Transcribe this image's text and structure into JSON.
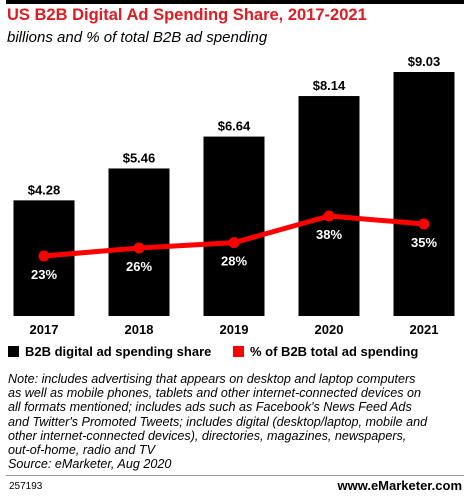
{
  "header": {
    "title": "US B2B Digital Ad Spending Share, 2017-2021",
    "subtitle": "billions and % of total B2B ad spending"
  },
  "chart_data": {
    "type": "bar",
    "categories": [
      "2017",
      "2018",
      "2019",
      "2020",
      "2021"
    ],
    "series": [
      {
        "name": "B2B digital ad spending share",
        "type": "bar",
        "color": "#000000",
        "values": [
          4.28,
          5.46,
          6.64,
          8.14,
          9.03
        ],
        "labels": [
          "$4.28",
          "$5.46",
          "$6.64",
          "$8.14",
          "$9.03"
        ]
      },
      {
        "name": "% of B2B total ad spending",
        "type": "line",
        "color": "#ff0000",
        "values": [
          23,
          26,
          28,
          38,
          35
        ],
        "labels": [
          "23%",
          "26%",
          "28%",
          "38%",
          "35%"
        ]
      }
    ],
    "legend_position": "bottom-left",
    "grid": false
  },
  "legend": {
    "bar_label": "B2B digital ad spending share",
    "line_label": "% of B2B total ad spending"
  },
  "note": {
    "lines": [
      "Note: includes advertising that appears on desktop and laptop computers",
      "as well as mobile phones, tablets and other internet-connected devices on",
      "all formats mentioned; includes ads such as Facebook's News Feed Ads",
      "and Twitter's Promoted Tweets; includes digital (desktop/laptop, mobile and",
      "other internet-connected devices), directories, magazines, newspapers,",
      "out-of-home, radio and TV",
      "Source: eMarketer, Aug 2020"
    ]
  },
  "footer": {
    "chart_id": "257193",
    "brand_prefix": "www.",
    "brand_main": "eMarketer",
    "brand_suffix": ".com"
  }
}
